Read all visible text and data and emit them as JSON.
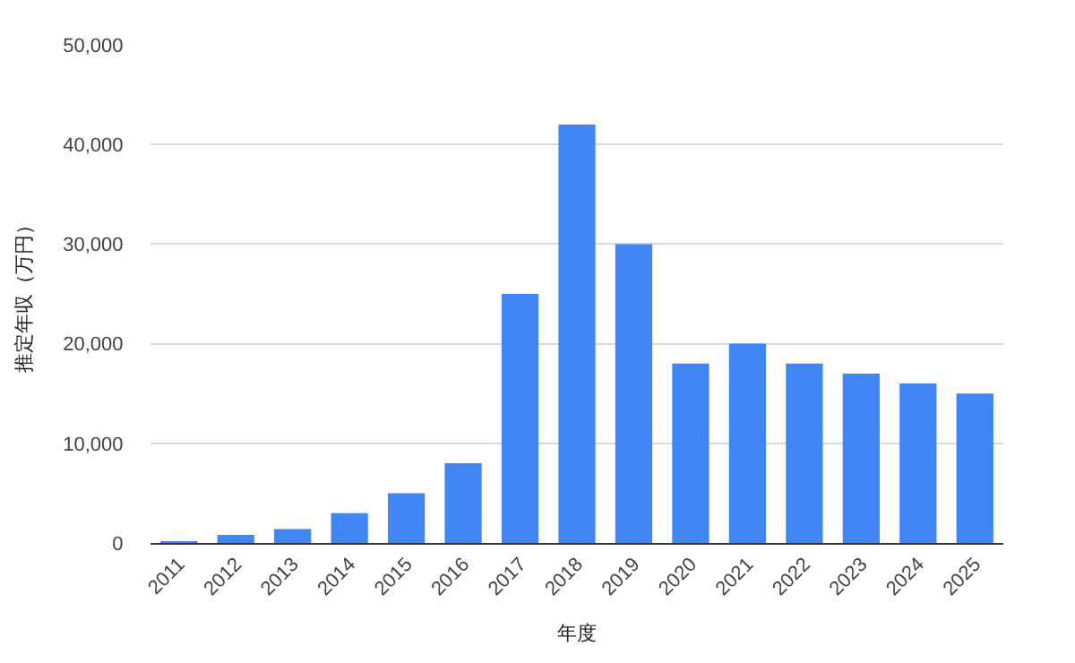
{
  "chart_data": {
    "type": "bar",
    "xlabel": "年度",
    "ylabel": "推定年収（万円）",
    "categories": [
      "2011",
      "2012",
      "2013",
      "2014",
      "2015",
      "2016",
      "2017",
      "2018",
      "2019",
      "2020",
      "2021",
      "2022",
      "2023",
      "2024",
      "2025"
    ],
    "values": [
      100,
      800,
      1400,
      3000,
      5000,
      8000,
      25000,
      42000,
      30000,
      18000,
      20000,
      18000,
      17000,
      16000,
      15000
    ],
    "color": "#4285f4",
    "ylim": [
      0,
      50000
    ],
    "yticks": [
      {
        "value": 0,
        "label": "0"
      },
      {
        "value": 10000,
        "label": "10,000"
      },
      {
        "value": 20000,
        "label": "20,000"
      },
      {
        "value": 30000,
        "label": "30,000"
      },
      {
        "value": 40000,
        "label": "40,000"
      },
      {
        "value": 50000,
        "label": "50,000"
      }
    ],
    "grid": "y"
  }
}
